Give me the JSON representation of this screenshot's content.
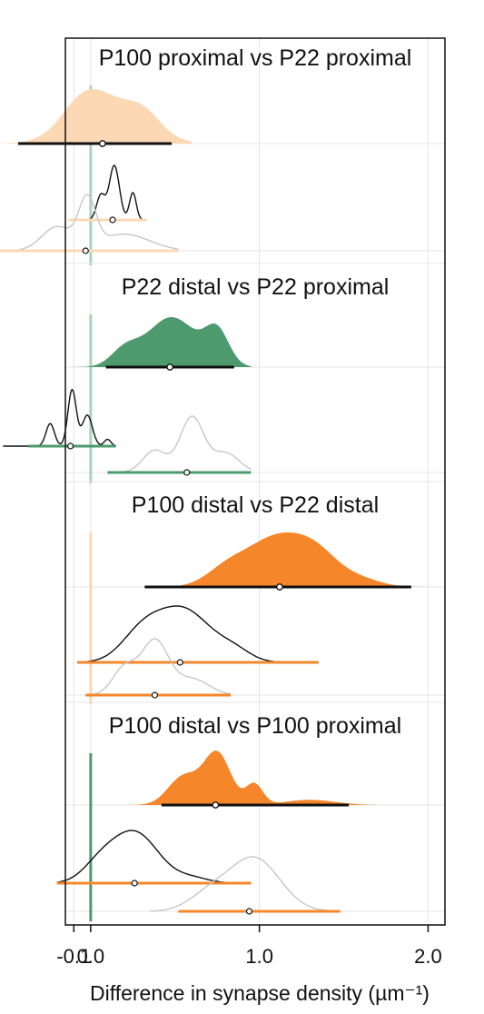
{
  "chart_data": {
    "type": "area",
    "xlabel": "Difference in synapse density (µm⁻¹)",
    "xlim": [
      -0.15,
      2.1
    ],
    "xticks": [
      {
        "value": -0.1,
        "label": "-0.1"
      },
      {
        "value": 0.0,
        "label": "0.0"
      },
      {
        "value": 1.0,
        "label": "1.0"
      },
      {
        "value": 2.0,
        "label": "2.0"
      }
    ],
    "grid": true,
    "colors": {
      "pale_orange": "#fcd8b4",
      "orange": "#f5872a",
      "green": "#4c9a6e",
      "pale_green": "#a9d3bd",
      "black": "#111111",
      "grey": "#c7c7c7",
      "grid": "#e4e4e4"
    },
    "panels": [
      {
        "title": "P100 proximal vs P22 proximal",
        "zero_line_color": "#a9d3bd",
        "main": {
          "fill": "#fcd8b4",
          "range": [
            -0.55,
            0.6
          ],
          "peaks": [
            [
              0.1,
              0.2,
              1.0
            ],
            [
              -0.05,
              0.12,
              0.55
            ],
            [
              0.32,
              0.1,
              0.4
            ]
          ],
          "interval": [
            -0.43,
            0.48
          ],
          "point": 0.07
        },
        "sub_a": {
          "color": "#111111",
          "range": [
            -0.13,
            0.33
          ],
          "peaks": [
            [
              0.14,
              0.03,
              1.0
            ],
            [
              0.06,
              0.025,
              0.45
            ],
            [
              0.25,
              0.02,
              0.5
            ]
          ],
          "interval": [
            -0.13,
            0.33
          ],
          "point": 0.13,
          "interval_color": "#fcd8b4"
        },
        "sub_b": {
          "color": "#c7c7c7",
          "range": [
            -0.62,
            0.52
          ],
          "peaks": [
            [
              -0.02,
              0.05,
              1.0
            ],
            [
              -0.2,
              0.09,
              0.5
            ],
            [
              0.2,
              0.15,
              0.35
            ]
          ],
          "interval": [
            -0.62,
            0.52
          ],
          "point": -0.03,
          "interval_color": "#fcd8b4"
        }
      },
      {
        "title": "P22 distal vs P22 proximal",
        "zero_line_color": "#a9d3bd",
        "main": {
          "fill": "#4c9a6e",
          "range": [
            -0.3,
            0.95
          ],
          "peaks": [
            [
              0.48,
              0.15,
              1.0
            ],
            [
              0.75,
              0.07,
              0.65
            ],
            [
              0.2,
              0.08,
              0.3
            ]
          ],
          "interval": [
            0.09,
            0.85
          ],
          "point": 0.47
        },
        "sub_a": {
          "color": "#111111",
          "range": [
            -0.52,
            0.15
          ],
          "peaks": [
            [
              -0.11,
              0.025,
              1.0
            ],
            [
              -0.24,
              0.025,
              0.4
            ],
            [
              -0.02,
              0.03,
              0.55
            ],
            [
              0.1,
              0.02,
              0.12
            ]
          ],
          "interval": [
            -0.37,
            0.15
          ],
          "point": -0.12,
          "interval_color": "#4c9a6e"
        },
        "sub_b": {
          "color": "#c7c7c7",
          "range": [
            0.1,
            0.95
          ],
          "peaks": [
            [
              0.6,
              0.07,
              1.0
            ],
            [
              0.38,
              0.07,
              0.4
            ],
            [
              0.8,
              0.08,
              0.35
            ]
          ],
          "interval": [
            0.1,
            0.95
          ],
          "point": 0.57,
          "interval_color": "#4c9a6e"
        }
      },
      {
        "title": "P100 distal vs P22 distal",
        "zero_line_color": "#fcd8b4",
        "main": {
          "fill": "#f5872a",
          "range": [
            0.1,
            2.05
          ],
          "peaks": [
            [
              1.1,
              0.18,
              1.0
            ],
            [
              1.35,
              0.13,
              0.5
            ],
            [
              0.8,
              0.12,
              0.3
            ],
            [
              1.6,
              0.12,
              0.15
            ]
          ],
          "interval": [
            0.32,
            1.9
          ],
          "point": 1.12
        },
        "sub_a": {
          "color": "#111111",
          "range": [
            -0.08,
            1.35
          ],
          "peaks": [
            [
              0.55,
              0.16,
              1.0
            ],
            [
              0.3,
              0.12,
              0.5
            ],
            [
              0.85,
              0.1,
              0.2
            ]
          ],
          "interval": [
            -0.08,
            1.35
          ],
          "point": 0.53,
          "interval_color": "#f5872a"
        },
        "sub_b": {
          "color": "#c7c7c7",
          "range": [
            -0.03,
            0.83
          ],
          "peaks": [
            [
              0.38,
              0.08,
              1.0
            ],
            [
              0.2,
              0.07,
              0.5
            ],
            [
              0.6,
              0.1,
              0.3
            ]
          ],
          "interval": [
            -0.03,
            0.83
          ],
          "point": 0.38,
          "interval_color": "#f5872a"
        }
      },
      {
        "title": "P100 distal vs P100 proximal",
        "zero_line_color": "#4c9a6e",
        "main": {
          "fill": "#f5872a",
          "range": [
            0.1,
            1.7
          ],
          "peaks": [
            [
              0.75,
              0.08,
              1.0
            ],
            [
              0.55,
              0.09,
              0.55
            ],
            [
              0.97,
              0.05,
              0.4
            ],
            [
              1.3,
              0.15,
              0.1
            ]
          ],
          "interval": [
            0.42,
            1.53
          ],
          "point": 0.74
        },
        "sub_a": {
          "color": "#111111",
          "range": [
            -0.2,
            0.95
          ],
          "peaks": [
            [
              0.26,
              0.14,
              1.0
            ],
            [
              0.05,
              0.1,
              0.3
            ],
            [
              0.6,
              0.1,
              0.1
            ]
          ],
          "interval": [
            -0.2,
            0.95
          ],
          "point": 0.26,
          "interval_color": "#f5872a"
        },
        "sub_b": {
          "color": "#c7c7c7",
          "range": [
            0.35,
            1.45
          ],
          "peaks": [
            [
              0.97,
              0.15,
              1.0
            ],
            [
              0.7,
              0.12,
              0.3
            ]
          ],
          "interval": [
            0.52,
            1.48
          ],
          "point": 0.94,
          "interval_color": "#f5872a"
        }
      }
    ]
  }
}
